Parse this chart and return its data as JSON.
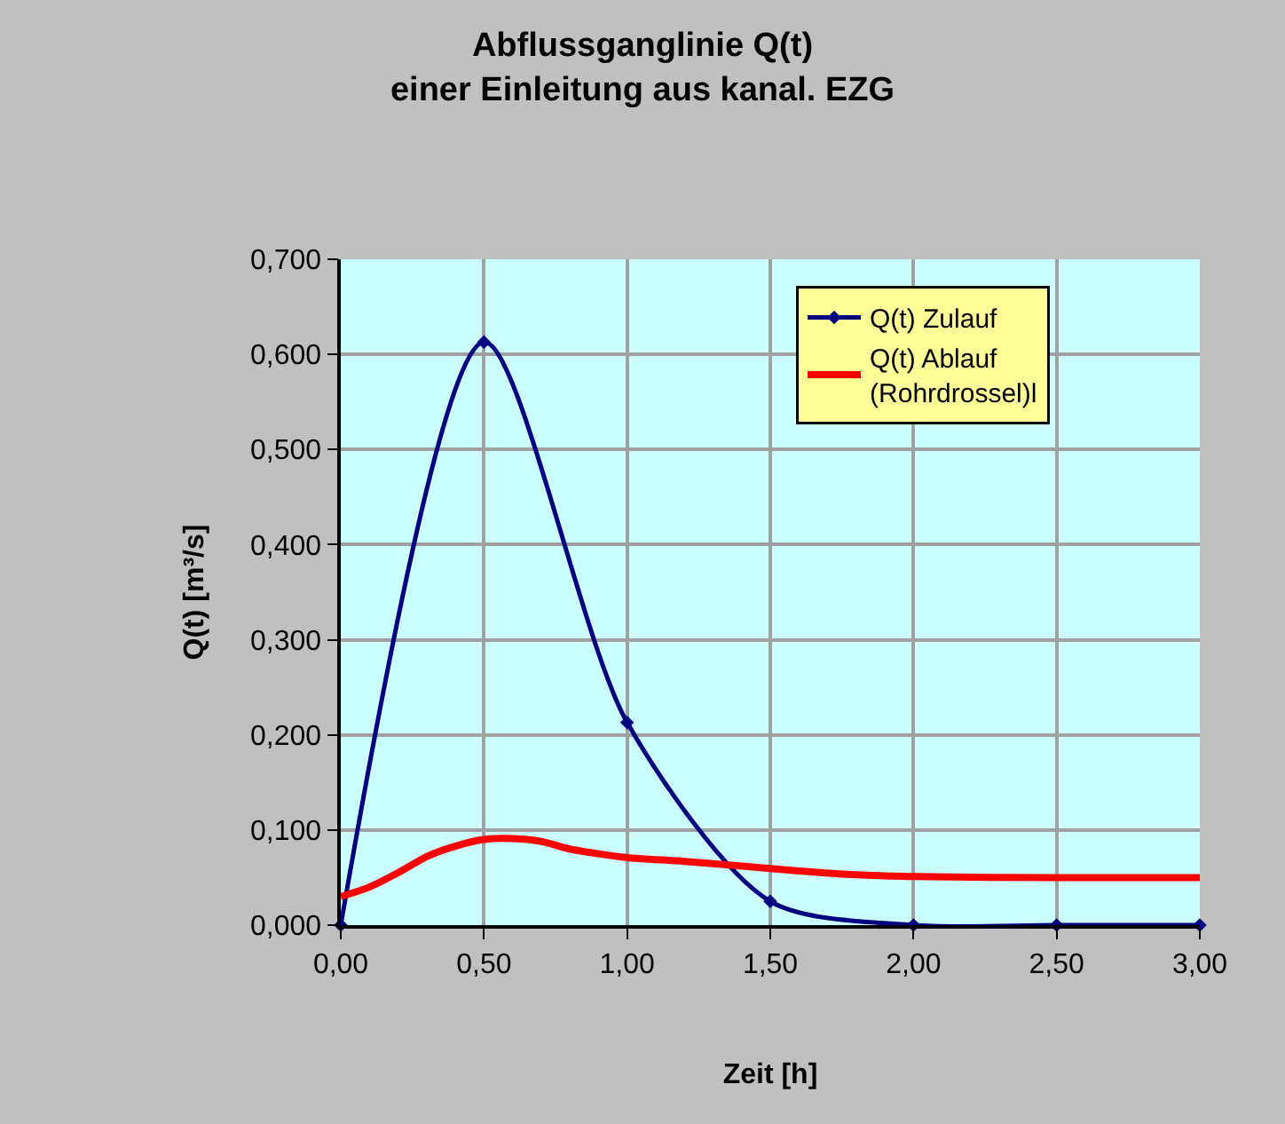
{
  "chart_data": {
    "type": "line",
    "title": "Abflussganglinie Q(t)\neiner Einleitung aus kanal. EZG",
    "xlabel": "Zeit [h]",
    "ylabel": "Q(t) [m³/s]",
    "xlim": [
      0,
      3
    ],
    "xticks": [
      {
        "value": 0,
        "label": "0,00"
      },
      {
        "value": 0.5,
        "label": "0,50"
      },
      {
        "value": 1,
        "label": "1,00"
      },
      {
        "value": 1.5,
        "label": "1,50"
      },
      {
        "value": 2,
        "label": "2,00"
      },
      {
        "value": 2.5,
        "label": "2,50"
      },
      {
        "value": 3,
        "label": "3,00"
      }
    ],
    "ylim": [
      0,
      0.7
    ],
    "yticks": [
      {
        "value": 0,
        "label": "0,000"
      },
      {
        "value": 0.1,
        "label": "0,100"
      },
      {
        "value": 0.2,
        "label": "0,200"
      },
      {
        "value": 0.3,
        "label": "0,300"
      },
      {
        "value": 0.4,
        "label": "0,400"
      },
      {
        "value": 0.5,
        "label": "0,500"
      },
      {
        "value": 0.6,
        "label": "0,600"
      },
      {
        "value": 0.7,
        "label": "0,700"
      }
    ],
    "grid": true,
    "legend": "top right",
    "series": [
      {
        "name": "Q(t) Zulauf",
        "color": "#000080",
        "marker": "diamond",
        "x": [
          0,
          0.5,
          1,
          1.5,
          2,
          2.5,
          3
        ],
        "values": [
          0,
          0.613,
          0.213,
          0.025,
          0,
          0,
          0
        ]
      },
      {
        "name": "Q(t) Ablauf\n(Rohrdrossel)l",
        "color": "#ff0000",
        "marker": "none",
        "x": [
          0,
          0.1,
          0.2,
          0.3,
          0.4,
          0.5,
          0.6,
          0.7,
          0.8,
          0.9,
          1,
          1.2,
          1.4,
          1.6,
          1.8,
          2,
          2.5,
          3
        ],
        "values": [
          0.03,
          0.04,
          0.055,
          0.072,
          0.083,
          0.09,
          0.091,
          0.088,
          0.08,
          0.075,
          0.071,
          0.067,
          0.062,
          0.057,
          0.053,
          0.051,
          0.05,
          0.05
        ]
      }
    ]
  }
}
